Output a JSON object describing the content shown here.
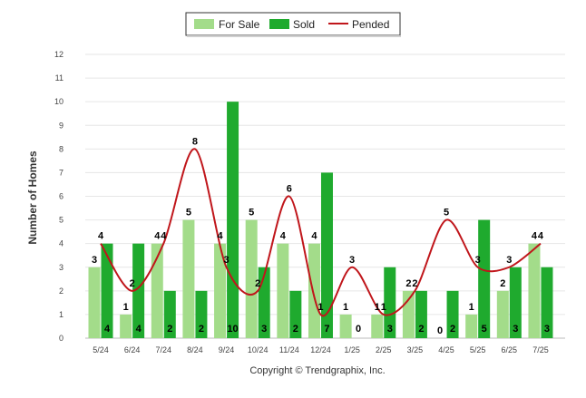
{
  "chart_data": {
    "type": "bar",
    "categories": [
      "5/24",
      "6/24",
      "7/24",
      "8/24",
      "9/24",
      "10/24",
      "11/24",
      "12/24",
      "1/25",
      "2/25",
      "3/25",
      "4/25",
      "5/25",
      "6/25",
      "7/25"
    ],
    "series": [
      {
        "name": "For Sale",
        "kind": "bar",
        "color": "#a3dc8a",
        "values": [
          3,
          1,
          4,
          5,
          4,
          5,
          4,
          4,
          1,
          1,
          2,
          0,
          1,
          2,
          4
        ]
      },
      {
        "name": "Sold",
        "kind": "bar",
        "color": "#1faa2e",
        "values": [
          4,
          4,
          2,
          2,
          10,
          3,
          2,
          7,
          0,
          3,
          2,
          2,
          5,
          3,
          3
        ]
      },
      {
        "name": "Pended",
        "kind": "line",
        "color": "#c0161b",
        "values": [
          4,
          2,
          4,
          8,
          3,
          2,
          6,
          1,
          3,
          1,
          2,
          5,
          3,
          3,
          4
        ]
      }
    ],
    "ylabel": "Number of Homes",
    "ylim": [
      0,
      12
    ],
    "yticks": [
      0,
      1,
      2,
      3,
      4,
      5,
      6,
      7,
      8,
      9,
      10,
      11,
      12
    ],
    "grid": true,
    "legend_position": "top-center"
  },
  "footer": {
    "copyright": "Copyright © Trendgraphix, Inc."
  }
}
